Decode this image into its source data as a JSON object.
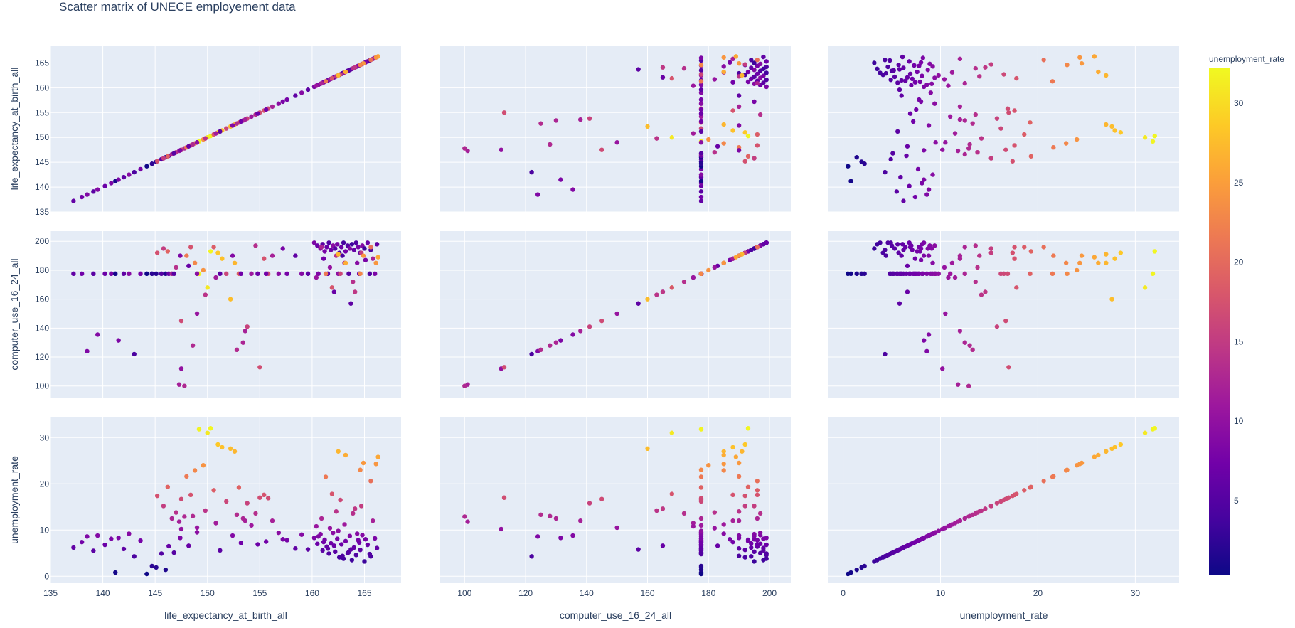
{
  "chart_data": {
    "type": "scatter",
    "subtype": "scatter_matrix",
    "title": "Scatter matrix of UNECE employement data",
    "variables": [
      {
        "name": "life_expectancy_at_birth_all",
        "range": [
          135,
          168.5
        ],
        "ticks": [
          135,
          140,
          145,
          150,
          155,
          160,
          165
        ]
      },
      {
        "name": "computer_use_16_24_all",
        "range": [
          92,
          207
        ],
        "ticks": [
          100,
          120,
          140,
          160,
          180,
          200
        ]
      },
      {
        "name": "unemployment_rate",
        "range": [
          -1.5,
          34.5
        ],
        "ticks": [
          0,
          10,
          20,
          30
        ]
      }
    ],
    "color_variable": "unemployment_rate",
    "colorscale": "Plasma",
    "colorscale_stops": [
      "#0d0887",
      "#46039f",
      "#7201a8",
      "#9c179e",
      "#bd3786",
      "#d8576b",
      "#ed7953",
      "#fb9f3a",
      "#fdca26",
      "#f0f921"
    ],
    "colorbar": {
      "title": "unemployment_rate",
      "range": [
        0.3,
        32.2
      ],
      "ticks": [
        5,
        10,
        15,
        20,
        25,
        30
      ]
    },
    "points": [
      [
        137.2,
        177.6,
        6.2
      ],
      [
        138.0,
        177.6,
        7.4
      ],
      [
        138.5,
        124.0,
        8.6
      ],
      [
        139.1,
        177.6,
        5.5
      ],
      [
        139.5,
        135.5,
        8.8
      ],
      [
        140.2,
        177.6,
        6.8
      ],
      [
        140.8,
        177.6,
        8.1
      ],
      [
        141.2,
        177.6,
        0.8
      ],
      [
        141.5,
        131.5,
        8.3
      ],
      [
        142.0,
        177.6,
        5.9
      ],
      [
        142.5,
        177.6,
        9.2
      ],
      [
        143.0,
        122.0,
        4.3
      ],
      [
        143.6,
        177.6,
        7.7
      ],
      [
        144.2,
        177.6,
        0.5
      ],
      [
        144.7,
        177.6,
        2.2
      ],
      [
        145.1,
        177.6,
        1.9
      ],
      [
        145.6,
        177.6,
        4.9
      ],
      [
        146.0,
        177.6,
        1.4
      ],
      [
        146.3,
        177.6,
        6.5
      ],
      [
        145.2,
        192.0,
        17.4
      ],
      [
        145.8,
        195.0,
        15.2
      ],
      [
        146.2,
        193.0,
        19.3
      ],
      [
        146.6,
        177.6,
        12.5
      ],
      [
        147.0,
        182.0,
        13.8
      ],
      [
        147.3,
        101.0,
        11.8
      ],
      [
        147.5,
        112.0,
        10.2
      ],
      [
        147.8,
        100.0,
        12.9
      ],
      [
        148.0,
        190.0,
        21.6
      ],
      [
        148.4,
        196.0,
        17.6
      ],
      [
        148.8,
        185.0,
        22.9
      ],
      [
        149.2,
        177.6,
        31.8
      ],
      [
        149.6,
        180.0,
        24.0
      ],
      [
        150.0,
        168.0,
        31.0
      ],
      [
        150.3,
        193.0,
        32.0
      ],
      [
        150.6,
        196.0,
        18.6
      ],
      [
        151.0,
        192.0,
        28.5
      ],
      [
        151.4,
        188.0,
        27.9
      ],
      [
        151.8,
        177.6,
        16.2
      ],
      [
        152.2,
        160.0,
        27.6
      ],
      [
        152.6,
        185.0,
        27.0
      ],
      [
        153.0,
        177.6,
        19.2
      ],
      [
        153.4,
        130.0,
        12.5
      ],
      [
        153.8,
        141.0,
        15.8
      ],
      [
        154.2,
        177.6,
        11.0
      ],
      [
        154.6,
        197.0,
        13.6
      ],
      [
        155.0,
        113.0,
        17.0
      ],
      [
        155.4,
        188.0,
        17.6
      ],
      [
        155.8,
        177.6,
        16.9
      ],
      [
        156.2,
        190.0,
        12.0
      ],
      [
        147.5,
        145.0,
        16.7
      ],
      [
        148.6,
        128.0,
        13.0
      ],
      [
        149.0,
        150.0,
        10.5
      ],
      [
        149.8,
        163.0,
        14.2
      ],
      [
        150.8,
        175.0,
        11.5
      ],
      [
        152.8,
        125.0,
        13.3
      ],
      [
        153.6,
        138.0,
        12.0
      ],
      [
        146.8,
        177.6,
        5.1
      ],
      [
        147.4,
        190.0,
        8.3
      ],
      [
        148.2,
        183.0,
        6.6
      ],
      [
        149.0,
        177.6,
        9.5
      ],
      [
        151.2,
        177.6,
        5.6
      ],
      [
        152.4,
        190.0,
        8.8
      ],
      [
        153.2,
        177.6,
        7.2
      ],
      [
        154.8,
        177.6,
        6.9
      ],
      [
        156.8,
        177.6,
        9.4
      ],
      [
        157.6,
        177.6,
        7.8
      ],
      [
        158.4,
        190.0,
        6.0
      ],
      [
        159.0,
        177.6,
        9.0
      ],
      [
        159.6,
        177.6,
        5.8
      ],
      [
        157.2,
        195.0,
        8.0
      ],
      [
        155.6,
        177.6,
        7.5
      ],
      [
        160.2,
        199.0,
        8.3
      ],
      [
        160.5,
        197.0,
        7.0
      ],
      [
        160.8,
        195.0,
        9.1
      ],
      [
        161.0,
        198.0,
        5.6
      ],
      [
        161.2,
        193.0,
        7.9
      ],
      [
        161.4,
        196.0,
        6.4
      ],
      [
        161.6,
        199.0,
        4.9
      ],
      [
        161.8,
        194.0,
        7.1
      ],
      [
        162.0,
        197.0,
        9.4
      ],
      [
        162.2,
        195.0,
        5.3
      ],
      [
        162.4,
        198.0,
        8.1
      ],
      [
        162.6,
        192.0,
        4.1
      ],
      [
        162.8,
        196.0,
        6.9
      ],
      [
        163.0,
        199.0,
        3.8
      ],
      [
        163.2,
        193.0,
        7.6
      ],
      [
        163.4,
        197.0,
        5.0
      ],
      [
        163.6,
        195.0,
        8.7
      ],
      [
        163.8,
        198.0,
        3.5
      ],
      [
        164.0,
        194.0,
        6.2
      ],
      [
        164.2,
        199.0,
        4.6
      ],
      [
        164.4,
        196.0,
        7.8
      ],
      [
        164.6,
        192.0,
        5.7
      ],
      [
        164.8,
        197.0,
        8.9
      ],
      [
        165.0,
        195.0,
        3.2
      ],
      [
        165.3,
        199.0,
        6.8
      ],
      [
        165.6,
        194.0,
        4.3
      ],
      [
        160.6,
        177.6,
        8.6
      ],
      [
        161.5,
        177.6,
        6.0
      ],
      [
        162.5,
        177.6,
        9.8
      ],
      [
        163.5,
        177.6,
        5.2
      ],
      [
        164.5,
        177.6,
        7.3
      ],
      [
        165.5,
        177.6,
        4.8
      ],
      [
        166.0,
        177.6,
        8.2
      ],
      [
        162.1,
        165.0,
        6.6
      ],
      [
        163.7,
        157.0,
        5.8
      ],
      [
        164.3,
        185.0,
        9.2
      ],
      [
        161.1,
        188.0,
        7.4
      ],
      [
        162.9,
        190.0,
        4.4
      ],
      [
        165.1,
        187.0,
        8.0
      ],
      [
        166.2,
        198.0,
        6.1
      ],
      [
        160.9,
        196.0,
        12.5
      ],
      [
        161.7,
        182.0,
        10.4
      ],
      [
        162.3,
        190.0,
        14.0
      ],
      [
        162.7,
        177.6,
        16.5
      ],
      [
        163.1,
        185.0,
        11.2
      ],
      [
        163.9,
        172.0,
        13.6
      ],
      [
        164.7,
        192.0,
        15.2
      ],
      [
        160.4,
        175.0,
        10.8
      ],
      [
        165.8,
        188.0,
        12.0
      ],
      [
        161.9,
        168.0,
        17.8
      ],
      [
        164.1,
        165.0,
        14.6
      ],
      [
        162.5,
        191.0,
        27.0
      ],
      [
        163.2,
        185.0,
        26.2
      ],
      [
        164.9,
        190.0,
        24.5
      ],
      [
        165.6,
        196.0,
        20.6
      ],
      [
        166.3,
        189.0,
        25.8
      ],
      [
        166.1,
        185.0,
        24.3
      ],
      [
        161.3,
        177.6,
        21.5
      ],
      [
        164.6,
        177.6,
        23.0
      ]
    ]
  }
}
